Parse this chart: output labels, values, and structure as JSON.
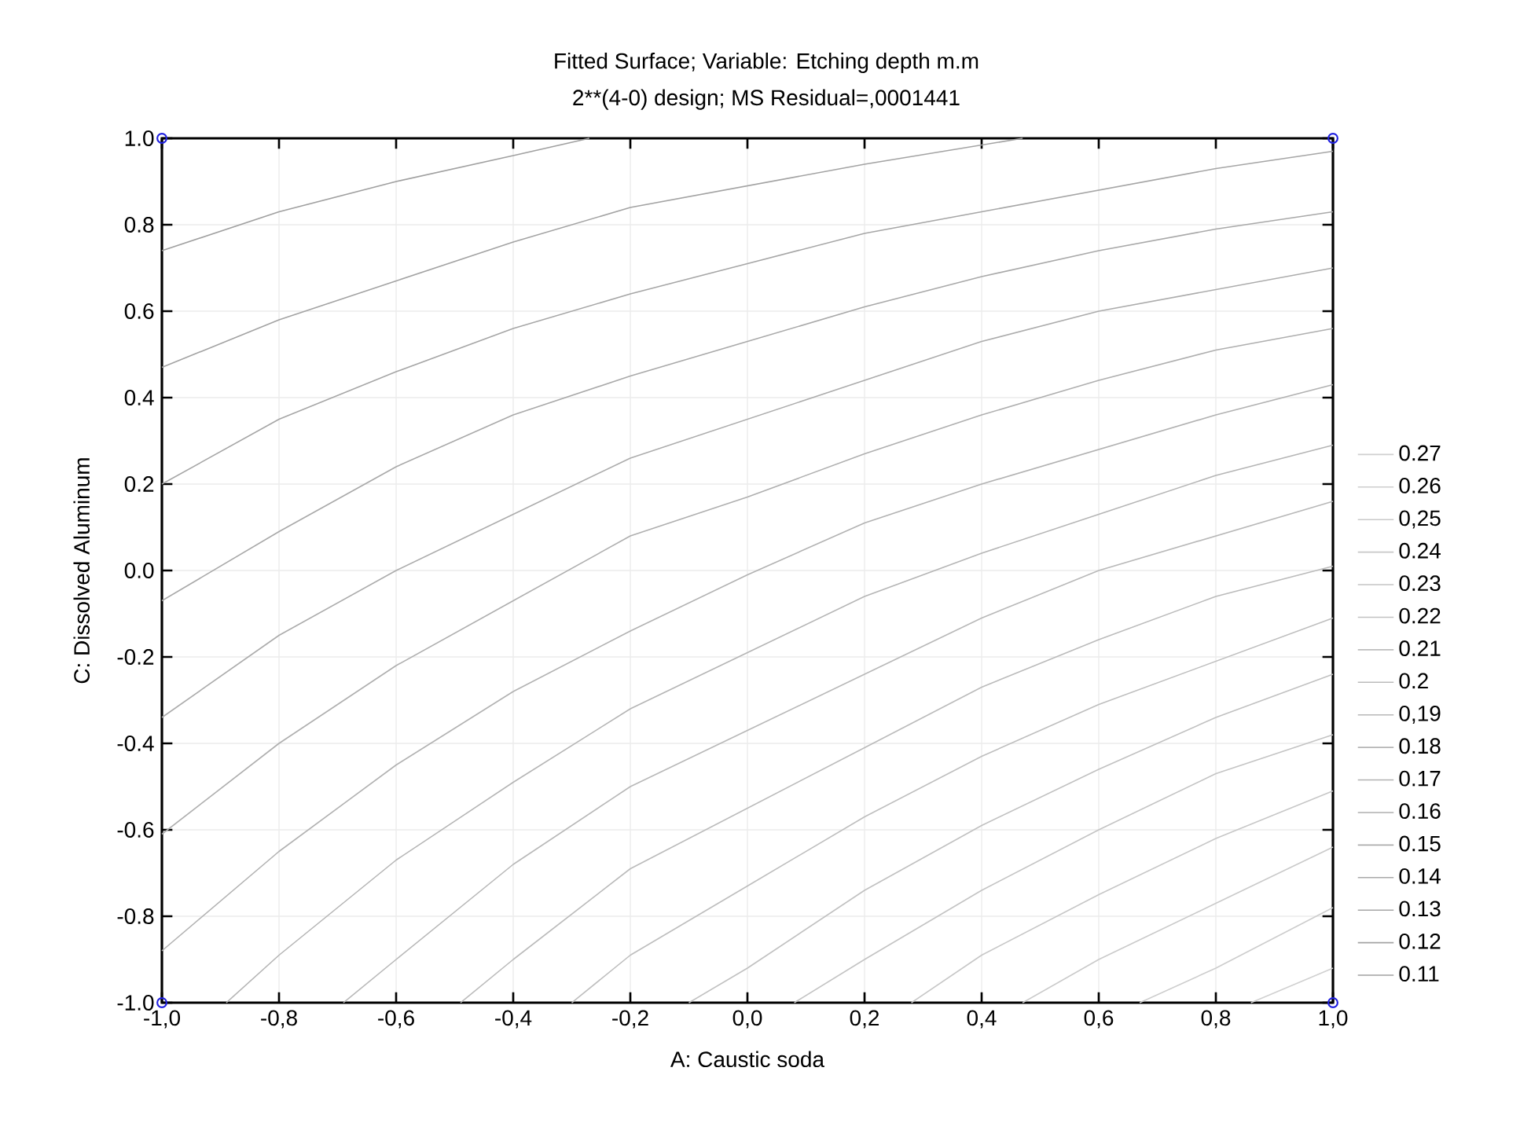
{
  "chart_data": {
    "type": "line",
    "title": "Fitted Surface; Variable: Etching depth m.m",
    "subtitle": "2**(4-0) design; MS Residual=,0001441",
    "xlabel": "A: Caustic soda",
    "ylabel": "C: Dissolved Aluminum",
    "xlim": [
      -1,
      1
    ],
    "ylim": [
      -1,
      1
    ],
    "xticks": [
      {
        "value": -1,
        "label": "-1,0"
      },
      {
        "value": -0.8,
        "label": "-0,8"
      },
      {
        "value": -0.6,
        "label": "-0,6"
      },
      {
        "value": -0.4,
        "label": "-0,4"
      },
      {
        "value": -0.2,
        "label": "-0,2"
      },
      {
        "value": 0,
        "label": "0,0"
      },
      {
        "value": 0.2,
        "label": "0,2"
      },
      {
        "value": 0.4,
        "label": "0,4"
      },
      {
        "value": 0.6,
        "label": "0,6"
      },
      {
        "value": 0.8,
        "label": "0,8"
      },
      {
        "value": 1,
        "label": "1,0"
      }
    ],
    "yticks": [
      {
        "value": -1,
        "label": "-1.0"
      },
      {
        "value": -0.8,
        "label": "-0.8"
      },
      {
        "value": -0.6,
        "label": "-0.6"
      },
      {
        "value": -0.4,
        "label": "-0.4"
      },
      {
        "value": -0.2,
        "label": "-0.2"
      },
      {
        "value": 0,
        "label": "0.0"
      },
      {
        "value": 0.2,
        "label": "0.2"
      },
      {
        "value": 0.4,
        "label": "0.4"
      },
      {
        "value": 0.6,
        "label": "0.6"
      },
      {
        "value": 0.8,
        "label": "0.8"
      },
      {
        "value": 1,
        "label": "1.0"
      }
    ],
    "grid": true,
    "legend": "right",
    "marker": "none",
    "line_style": "solid",
    "series": [
      {
        "name": "0.27",
        "color": "#d0d0d0",
        "x": [
          0.86,
          1
        ],
        "values": [
          -1,
          -0.92
        ]
      },
      {
        "name": "0.26",
        "color": "#cdcdcd",
        "x": [
          0.67,
          0.8,
          1
        ],
        "values": [
          -1,
          -0.92,
          -0.78
        ]
      },
      {
        "name": "0,25",
        "color": "#cacaca",
        "x": [
          0.47,
          0.6,
          0.8,
          1
        ],
        "values": [
          -1,
          -0.9,
          -0.77,
          -0.64
        ]
      },
      {
        "name": "0.24",
        "color": "#c7c7c7",
        "x": [
          0.28,
          0.4,
          0.6,
          0.8,
          1
        ],
        "values": [
          -1,
          -0.89,
          -0.75,
          -0.62,
          -0.51
        ]
      },
      {
        "name": "0.23",
        "color": "#c4c4c4",
        "x": [
          0.08,
          0.2,
          0.4,
          0.6,
          0.8,
          1
        ],
        "values": [
          -1,
          -0.9,
          -0.74,
          -0.6,
          -0.47,
          -0.38
        ]
      },
      {
        "name": "0.22",
        "color": "#c1c1c1",
        "x": [
          -0.1,
          0,
          0.2,
          0.4,
          0.6,
          0.8,
          1
        ],
        "values": [
          -1,
          -0.92,
          -0.74,
          -0.59,
          -0.46,
          -0.34,
          -0.24
        ]
      },
      {
        "name": "0.21",
        "color": "#bebebe",
        "x": [
          -0.3,
          -0.2,
          0,
          0.2,
          0.4,
          0.6,
          0.8,
          1
        ],
        "values": [
          -1,
          -0.89,
          -0.73,
          -0.57,
          -0.43,
          -0.31,
          -0.21,
          -0.11
        ]
      },
      {
        "name": "0.2",
        "color": "#bbbbbb",
        "x": [
          -0.49,
          -0.4,
          -0.2,
          0,
          0.2,
          0.4,
          0.6,
          0.8,
          1
        ],
        "values": [
          -1,
          -0.9,
          -0.69,
          -0.55,
          -0.41,
          -0.27,
          -0.16,
          -0.06,
          0.01
        ]
      },
      {
        "name": "0,19",
        "color": "#b8b8b8",
        "x": [
          -0.69,
          -0.6,
          -0.4,
          -0.2,
          0,
          0.2,
          0.4,
          0.6,
          0.8,
          1
        ],
        "values": [
          -1,
          -0.9,
          -0.68,
          -0.5,
          -0.37,
          -0.24,
          -0.11,
          0,
          0.08,
          0.16
        ]
      },
      {
        "name": "0.18",
        "color": "#b5b5b5",
        "x": [
          -0.89,
          -0.8,
          -0.6,
          -0.4,
          -0.2,
          0,
          0.2,
          0.4,
          0.6,
          0.8,
          1
        ],
        "values": [
          -1,
          -0.89,
          -0.67,
          -0.49,
          -0.32,
          -0.19,
          -0.06,
          0.04,
          0.13,
          0.22,
          0.29
        ]
      },
      {
        "name": "0.17",
        "color": "#b2b2b2",
        "x": [
          -1,
          -0.8,
          -0.6,
          -0.4,
          -0.2,
          0,
          0.2,
          0.4,
          0.6,
          0.8,
          1
        ],
        "values": [
          -0.88,
          -0.65,
          -0.45,
          -0.28,
          -0.14,
          -0.01,
          0.11,
          0.2,
          0.28,
          0.36,
          0.43
        ]
      },
      {
        "name": "0.16",
        "color": "#afafaf",
        "x": [
          -1,
          -0.8,
          -0.6,
          -0.4,
          -0.2,
          0,
          0.2,
          0.4,
          0.6,
          0.8,
          1
        ],
        "values": [
          -0.61,
          -0.4,
          -0.22,
          -0.07,
          0.08,
          0.17,
          0.27,
          0.36,
          0.44,
          0.51,
          0.56
        ]
      },
      {
        "name": "0.15",
        "color": "#acacac",
        "x": [
          -1,
          -0.8,
          -0.6,
          -0.4,
          -0.2,
          0,
          0.2,
          0.4,
          0.6,
          0.8,
          1
        ],
        "values": [
          -0.34,
          -0.15,
          0,
          0.13,
          0.26,
          0.35,
          0.44,
          0.53,
          0.6,
          0.65,
          0.7
        ]
      },
      {
        "name": "0.14",
        "color": "#a9a9a9",
        "x": [
          -1,
          -0.8,
          -0.6,
          -0.4,
          -0.2,
          0,
          0.2,
          0.4,
          0.6,
          0.8,
          1
        ],
        "values": [
          -0.07,
          0.09,
          0.24,
          0.36,
          0.45,
          0.53,
          0.61,
          0.68,
          0.74,
          0.79,
          0.83
        ]
      },
      {
        "name": "0.13",
        "color": "#a6a6a6",
        "x": [
          -1,
          -0.8,
          -0.6,
          -0.4,
          -0.2,
          0,
          0.2,
          0.4,
          0.6,
          0.8,
          1
        ],
        "values": [
          0.2,
          0.35,
          0.46,
          0.56,
          0.64,
          0.71,
          0.78,
          0.83,
          0.88,
          0.93,
          0.97
        ]
      },
      {
        "name": "0.12",
        "color": "#a3a3a3",
        "x": [
          -1,
          -0.8,
          -0.6,
          -0.4,
          -0.2,
          0,
          0.2,
          0.47
        ],
        "values": [
          0.47,
          0.58,
          0.67,
          0.76,
          0.84,
          0.89,
          0.94,
          1
        ]
      },
      {
        "name": "0.11",
        "color": "#a0a0a0",
        "x": [
          -1,
          -0.8,
          -0.6,
          -0.4,
          -0.27
        ],
        "values": [
          0.74,
          0.83,
          0.9,
          0.96,
          1
        ]
      },
      {
        "type": "scatter",
        "marker": "circle",
        "color": "#2020e0",
        "x": [
          -1,
          1,
          -1,
          1
        ],
        "values": [
          1,
          1,
          -1,
          -1
        ]
      }
    ]
  }
}
